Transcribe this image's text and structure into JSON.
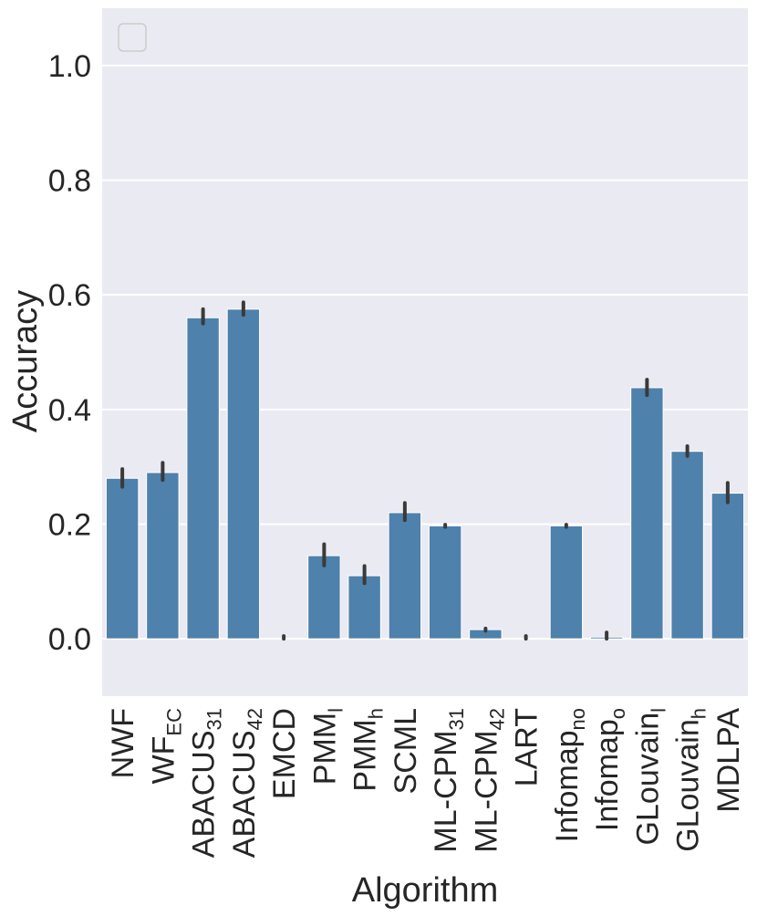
{
  "chart_data": {
    "type": "bar",
    "xlabel": "Algorithm",
    "ylabel": "Accuracy",
    "ylim": [
      -0.1,
      1.1
    ],
    "yticks": [
      "0.0",
      "0.2",
      "0.4",
      "0.6",
      "0.8",
      "1.0"
    ],
    "ytick_values": [
      0.0,
      0.2,
      0.4,
      0.6,
      0.8,
      1.0
    ],
    "grid": true,
    "legend": {
      "placement": "top-left",
      "entries": []
    },
    "categories": [
      {
        "base": "NWF",
        "sub": ""
      },
      {
        "base": "WF",
        "sub": "EC"
      },
      {
        "base": "ABACUS",
        "sub": "31"
      },
      {
        "base": "ABACUS",
        "sub": "42"
      },
      {
        "base": "EMCD",
        "sub": ""
      },
      {
        "base": "PMM",
        "sub": "l"
      },
      {
        "base": "PMM",
        "sub": "h"
      },
      {
        "base": "SCML",
        "sub": ""
      },
      {
        "base": "ML-CPM",
        "sub": "31"
      },
      {
        "base": "ML-CPM",
        "sub": "42"
      },
      {
        "base": "LART",
        "sub": ""
      },
      {
        "base": "Infomap",
        "sub": "no"
      },
      {
        "base": "Infomap",
        "sub": "o"
      },
      {
        "base": "GLouvain",
        "sub": "l"
      },
      {
        "base": "GLouvain",
        "sub": "h"
      },
      {
        "base": "MDLPA",
        "sub": ""
      }
    ],
    "series": [
      {
        "values": [
          0.28,
          0.29,
          0.56,
          0.575,
          0.0,
          0.145,
          0.11,
          0.22,
          0.197,
          0.016,
          0.0,
          0.197,
          0.003,
          0.438,
          0.327,
          0.254
        ],
        "error_low": [
          0.265,
          0.277,
          0.55,
          0.565,
          0.0,
          0.128,
          0.097,
          0.207,
          0.195,
          0.014,
          0.0,
          0.195,
          0.0,
          0.425,
          0.319,
          0.238
        ],
        "error_high": [
          0.296,
          0.307,
          0.575,
          0.587,
          0.002,
          0.165,
          0.127,
          0.237,
          0.199,
          0.018,
          0.002,
          0.199,
          0.011,
          0.452,
          0.336,
          0.272
        ]
      }
    ],
    "colors": {
      "bar": "#4e81ab",
      "error_bar": "#3a3a3a",
      "plot_background": "#eaeaf2",
      "grid": "#ffffff",
      "text": "#262626"
    }
  }
}
